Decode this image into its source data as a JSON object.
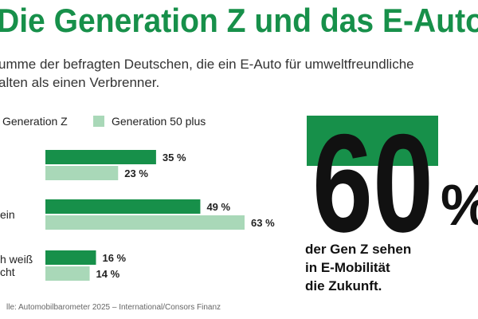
{
  "chart_data": {
    "type": "bar",
    "title": "Die Generation Z und das E-Auto",
    "subtitle": [
      "umme der befragten Deutschen, die ein E-Auto für umweltfreundliche",
      "alten als einen Verbrenner."
    ],
    "categories": [
      null,
      [
        "ein"
      ],
      [
        "h weiß",
        "cht"
      ]
    ],
    "series": [
      {
        "name": "Generation Z",
        "color": "#17904a",
        "values": [
          35,
          49,
          16
        ],
        "value_labels": [
          "35 %",
          "49 %",
          "16 %"
        ]
      },
      {
        "name": "Generation 50 plus",
        "color": "#a9d8b8",
        "values": [
          23,
          63,
          14
        ],
        "value_labels": [
          "23 %",
          "63 %",
          "14 %"
        ]
      }
    ],
    "highlight": {
      "value": 60,
      "unit": "%",
      "box_color": "#17904a",
      "text": [
        "der Gen Z sehen",
        "in E-Mobilität",
        "die Zukunft."
      ]
    },
    "source": "lle: Automobilbarometer 2025 – International/Consors Finanz"
  }
}
